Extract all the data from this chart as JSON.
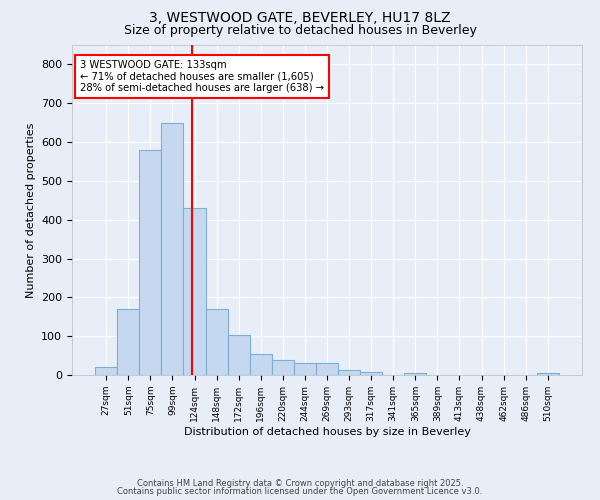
{
  "title_line1": "3, WESTWOOD GATE, BEVERLEY, HU17 8LZ",
  "title_line2": "Size of property relative to detached houses in Beverley",
  "xlabel": "Distribution of detached houses by size in Beverley",
  "ylabel": "Number of detached properties",
  "bar_labels": [
    "27sqm",
    "51sqm",
    "75sqm",
    "99sqm",
    "124sqm",
    "148sqm",
    "172sqm",
    "196sqm",
    "220sqm",
    "244sqm",
    "269sqm",
    "293sqm",
    "317sqm",
    "341sqm",
    "365sqm",
    "389sqm",
    "413sqm",
    "438sqm",
    "462sqm",
    "486sqm",
    "510sqm"
  ],
  "bar_values": [
    20,
    170,
    580,
    648,
    430,
    170,
    103,
    55,
    38,
    30,
    30,
    13,
    8,
    0,
    5,
    0,
    0,
    0,
    0,
    0,
    5
  ],
  "bar_color": "#c5d8f0",
  "bar_edge_color": "#7ab0d8",
  "annotation_line1": "3 WESTWOOD GATE: 133sqm",
  "annotation_line2": "← 71% of detached houses are smaller (1,605)",
  "annotation_line3": "28% of semi-detached houses are larger (638) →",
  "bg_color": "#e8eef8",
  "plot_bg_color": "#e8eef8",
  "grid_color": "#ffffff",
  "ylim": [
    0,
    850
  ],
  "yticks": [
    0,
    100,
    200,
    300,
    400,
    500,
    600,
    700,
    800
  ],
  "footer_line1": "Contains HM Land Registry data © Crown copyright and database right 2025.",
  "footer_line2": "Contains public sector information licensed under the Open Government Licence v3.0."
}
